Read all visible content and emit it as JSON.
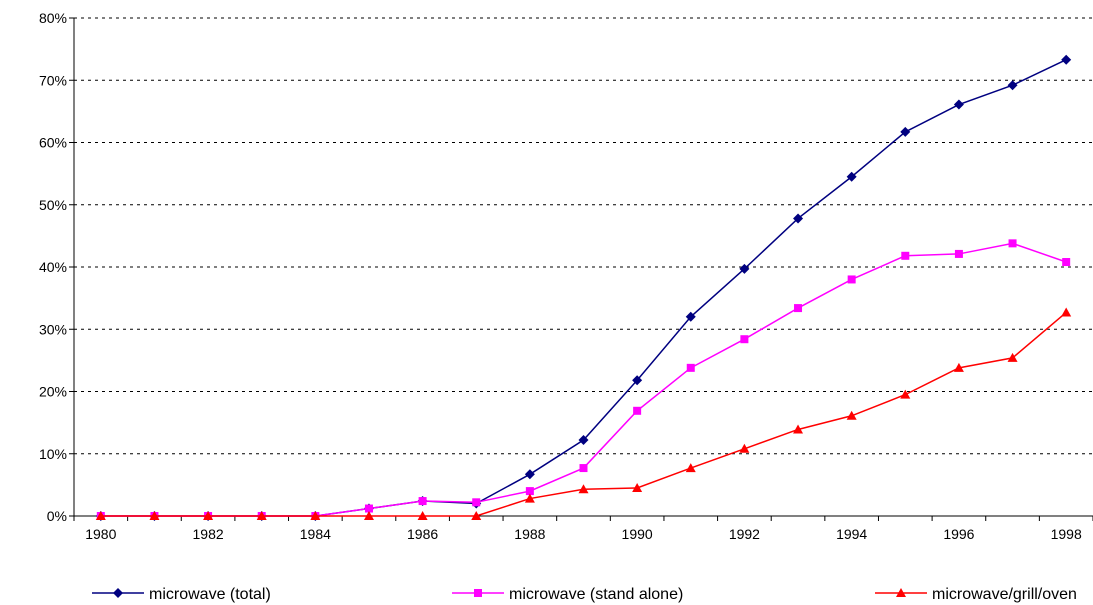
{
  "chart_data": {
    "type": "line",
    "x": [
      1980,
      1981,
      1982,
      1983,
      1984,
      1985,
      1986,
      1987,
      1988,
      1989,
      1990,
      1991,
      1992,
      1993,
      1994,
      1995,
      1996,
      1997,
      1998
    ],
    "x_tick_labels": [
      "1980",
      "1982",
      "1984",
      "1986",
      "1988",
      "1990",
      "1992",
      "1994",
      "1996",
      "1998"
    ],
    "y_tick_labels": [
      "0%",
      "10%",
      "20%",
      "30%",
      "40%",
      "50%",
      "60%",
      "70%",
      "80%"
    ],
    "ylim": [
      0,
      80
    ],
    "grid": "horizontal dashed",
    "legend_position": "bottom",
    "series": [
      {
        "name": "microwave (total)",
        "color": "#000080",
        "marker": "diamond",
        "values": [
          0,
          0,
          0,
          0,
          0,
          1.2,
          2.4,
          2.0,
          6.7,
          12.2,
          21.8,
          32.0,
          39.7,
          47.8,
          54.5,
          61.7,
          66.1,
          69.2,
          73.3
        ]
      },
      {
        "name": "microwave (stand alone)",
        "color": "#FF00FF",
        "marker": "square",
        "values": [
          0,
          0,
          0,
          0,
          0,
          1.2,
          2.4,
          2.2,
          4.0,
          7.7,
          16.9,
          23.8,
          28.4,
          33.4,
          38.0,
          41.8,
          42.1,
          43.8,
          40.8
        ]
      },
      {
        "name": "microwave/grill/oven",
        "color": "#FF0000",
        "marker": "triangle",
        "values": [
          0,
          0,
          0,
          0,
          0,
          0,
          0,
          0,
          2.8,
          4.3,
          4.5,
          7.7,
          10.8,
          13.9,
          16.1,
          19.5,
          23.8,
          25.4,
          32.7
        ]
      }
    ]
  }
}
